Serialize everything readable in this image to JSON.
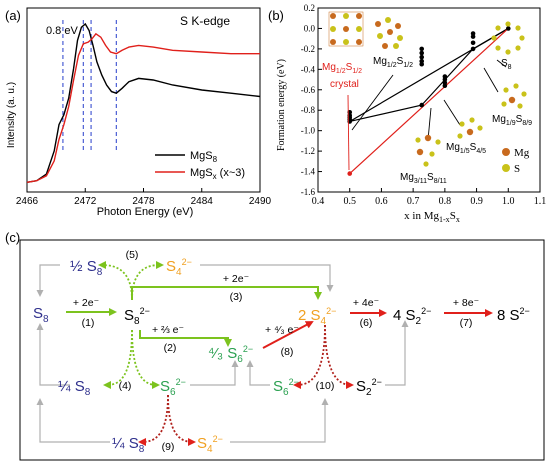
{
  "panel_a": {
    "label": "(a)",
    "title": "S K-edge",
    "annotation": "0.8 eV",
    "xlabel": "Photon Energy (eV)",
    "ylabel": "Intensity (a. u.)",
    "legend": [
      {
        "name": "MgS",
        "sub": "8",
        "tail": "",
        "color": "#000000"
      },
      {
        "name": "MgS",
        "sub": "x",
        "tail": " (x~3)",
        "color": "#e0201b"
      }
    ],
    "colors": {
      "mgs8": "#000000",
      "mgsx": "#e0201b",
      "dash": "#3a4fd0"
    }
  },
  "panel_b": {
    "label": "(b)",
    "ylabel": "Formation energy (eV)",
    "xlabel_pre": "x  in  Mg",
    "xlabel_sub1": "1-x",
    "xlabel_mid": "S",
    "xlabel_sub2": "x",
    "crystal_label": "crystal",
    "colors": {
      "hull_black": "#000000",
      "hull_red": "#e0201b",
      "mg_atom": "#c86a1e",
      "s_atom": "#c9c21a"
    },
    "legend": [
      {
        "label": "Mg",
        "color": "#c86a1e"
      },
      {
        "label": "S",
        "color": "#c9c21a"
      }
    ],
    "structure_labels": [
      {
        "main": "Mg",
        "sub1": "1/2",
        "mid": "S",
        "sub2": "1/2",
        "color": "#e0201b"
      },
      {
        "main": "Mg",
        "sub1": "1/2",
        "mid": "S",
        "sub2": "1/2",
        "color": "#000000"
      },
      {
        "main": "S",
        "sub1": "",
        "mid": "",
        "sub2": "8",
        "color": "#000000"
      },
      {
        "main": "Mg",
        "sub1": "1/9",
        "mid": "S",
        "sub2": "8/9",
        "color": "#000000"
      },
      {
        "main": "Mg",
        "sub1": "1/5",
        "mid": "S",
        "sub2": "4/5",
        "color": "#000000"
      },
      {
        "main": "Mg",
        "sub1": "3/11",
        "mid": "S",
        "sub2": "8/11",
        "color": "#000000"
      }
    ]
  },
  "panel_c": {
    "label": "(c)",
    "colors": {
      "navy": "#2e2f8c",
      "orange": "#f0a020",
      "green": "#2aa050",
      "red": "#e0201b",
      "gray": "#b0b0b0",
      "lime": "#7cc31e"
    },
    "species": {
      "half_s8": {
        "coef": "½",
        "base": "S",
        "sub": "8",
        "sup": ""
      },
      "s4_top": {
        "coef": "",
        "base": "S",
        "sub": "4",
        "sup": "2−"
      },
      "s8_left": {
        "coef": "",
        "base": "S",
        "sub": "8",
        "sup": ""
      },
      "s8_ion": {
        "coef": "",
        "base": "S",
        "sub": "8",
        "sup": "2−"
      },
      "two_s4": {
        "coef": "2",
        "base": "S",
        "sub": "4",
        "sup": "2−"
      },
      "four_s2": {
        "coef": "4",
        "base": "S",
        "sub": "2",
        "sup": "2−"
      },
      "eight_s": {
        "coef": "8",
        "base": "S",
        "sub": "",
        "sup": "2−"
      },
      "four_thirds_s6": {
        "coef": "⁴⁄₃",
        "base": "S",
        "sub": "6",
        "sup": "2−"
      },
      "quarter_s8_mid": {
        "coef": "¼",
        "base": "S",
        "sub": "8",
        "sup": ""
      },
      "s6_mid": {
        "coef": "",
        "base": "S",
        "sub": "6",
        "sup": "2−"
      },
      "s6_right": {
        "coef": "",
        "base": "S",
        "sub": "6",
        "sup": "2−"
      },
      "s2_right": {
        "coef": "",
        "base": "S",
        "sub": "2",
        "sup": "2−"
      },
      "quarter_s8_bottom": {
        "coef": "¼",
        "base": "S",
        "sub": "8",
        "sup": ""
      },
      "s4_bottom": {
        "coef": "",
        "base": "S",
        "sub": "4",
        "sup": "2−"
      }
    },
    "reactions": [
      {
        "id": "(1)",
        "electrons": "+ 2e⁻"
      },
      {
        "id": "(2)",
        "electrons": "+ ⅔ e⁻"
      },
      {
        "id": "(3)",
        "electrons": "+ 2e⁻"
      },
      {
        "id": "(4)",
        "electrons": ""
      },
      {
        "id": "(5)",
        "electrons": ""
      },
      {
        "id": "(6)",
        "electrons": "+ 4e⁻"
      },
      {
        "id": "(7)",
        "electrons": "+ 8e⁻"
      },
      {
        "id": "(8)",
        "electrons": "+ ⁴⁄₃ e⁻"
      },
      {
        "id": "(9)",
        "electrons": ""
      },
      {
        "id": "(10)",
        "electrons": ""
      }
    ]
  },
  "chart_data": [
    {
      "type": "line",
      "title": "S K-edge",
      "xlabel": "Photon Energy (eV)",
      "ylabel": "Intensity (a. u.)",
      "xlim": [
        2466,
        2490
      ],
      "xticks": [
        2466,
        2472,
        2478,
        2484,
        2490
      ],
      "annotations": [
        "0.8 eV"
      ],
      "vlines": [
        2469.7,
        2471.8,
        2472.6,
        2475.2
      ],
      "series": [
        {
          "name": "MgS8",
          "color": "#000000",
          "x": [
            2466,
            2467,
            2468,
            2468.8,
            2469.3,
            2469.8,
            2470.3,
            2470.8,
            2471.2,
            2471.6,
            2472,
            2472.4,
            2472.8,
            2473.2,
            2473.7,
            2474.2,
            2474.7,
            2475.2,
            2475.8,
            2476.5,
            2477.5,
            2479,
            2481,
            2484,
            2487,
            2490
          ],
          "y": [
            0.01,
            0.02,
            0.06,
            0.2,
            0.36,
            0.42,
            0.52,
            0.7,
            0.87,
            0.95,
            0.97,
            0.93,
            0.84,
            0.74,
            0.66,
            0.6,
            0.56,
            0.55,
            0.58,
            0.62,
            0.64,
            0.63,
            0.6,
            0.57,
            0.55,
            0.53
          ]
        },
        {
          "name": "MgSx (x~3)",
          "color": "#e0201b",
          "x": [
            2466,
            2467,
            2468,
            2468.8,
            2469.3,
            2469.8,
            2470.3,
            2470.8,
            2471.3,
            2471.8,
            2472.3,
            2472.7,
            2473.1,
            2473.6,
            2474.1,
            2474.6,
            2475.2,
            2475.8,
            2476.5,
            2477.5,
            2479,
            2481,
            2484,
            2487,
            2490
          ],
          "y": [
            0.01,
            0.02,
            0.05,
            0.14,
            0.27,
            0.36,
            0.47,
            0.63,
            0.78,
            0.85,
            0.86,
            0.88,
            0.91,
            0.89,
            0.84,
            0.8,
            0.79,
            0.81,
            0.83,
            0.84,
            0.83,
            0.81,
            0.8,
            0.79,
            0.79
          ]
        }
      ]
    },
    {
      "type": "scatter",
      "xlabel": "x in Mg1-xSx",
      "ylabel": "Formation energy (eV)",
      "xlim": [
        0.4,
        1.1
      ],
      "ylim": [
        -1.6,
        0.2
      ],
      "xticks": [
        0.4,
        0.5,
        0.6,
        0.7,
        0.8,
        0.9,
        1.0,
        1.1
      ],
      "yticks": [
        -1.6,
        -1.4,
        -1.2,
        -1.0,
        -0.8,
        -0.6,
        -0.4,
        -0.2,
        0.0,
        0.2
      ],
      "series": [
        {
          "name": "black",
          "color": "#000000",
          "x": [
            0.5,
            0.5,
            0.5,
            0.5,
            0.5,
            0.727,
            0.727,
            0.727,
            0.727,
            0.727,
            0.727,
            0.8,
            0.8,
            0.8,
            0.8,
            0.889,
            0.889,
            0.889,
            0.889,
            1.0
          ],
          "y": [
            -0.82,
            -0.85,
            -0.87,
            -0.89,
            -0.91,
            -0.2,
            -0.24,
            -0.28,
            -0.32,
            -0.35,
            -0.75,
            -0.47,
            -0.5,
            -0.53,
            -0.56,
            -0.05,
            -0.08,
            -0.14,
            -0.2,
            0.0
          ]
        },
        {
          "name": "red",
          "color": "#e0201b",
          "x": [
            0.5
          ],
          "y": [
            -1.42
          ]
        }
      ],
      "hull_black": {
        "x": [
          0.5,
          0.727,
          0.889,
          1.0
        ],
        "y": [
          -0.91,
          -0.75,
          -0.2,
          0.0
        ]
      },
      "hull_red": {
        "x": [
          0.5,
          1.0
        ],
        "y": [
          -1.42,
          0.0
        ]
      }
    }
  ]
}
